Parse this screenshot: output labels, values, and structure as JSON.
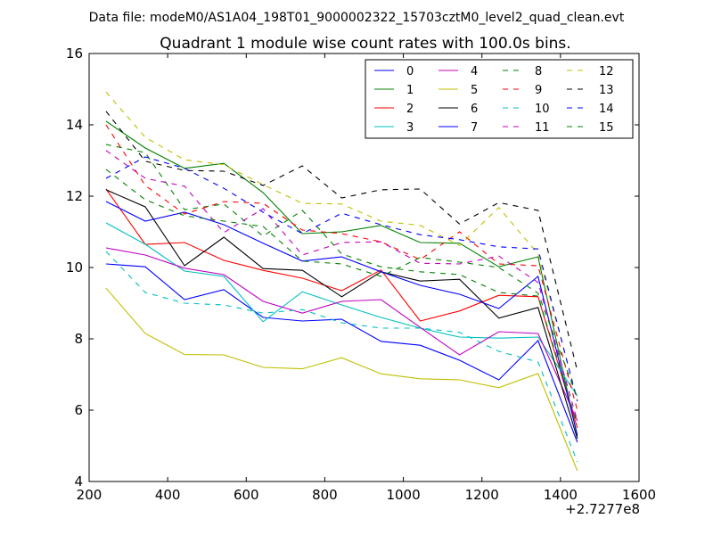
{
  "chart_data": {
    "type": "line",
    "suptitle": "Data file: modeM0/AS1A04_198T01_9000002322_15703cztM0_level2_quad_clean.evt",
    "title": "Quadrant 1 module wise count rates with 100.0s bins.",
    "xlabel": "",
    "ylabel": "",
    "x_offset_label": "+2.7277e8",
    "xlim": [
      200,
      1600
    ],
    "ylim": [
      4,
      16
    ],
    "xticks": [
      200,
      400,
      600,
      800,
      1000,
      1200,
      1400,
      1600
    ],
    "yticks": [
      4,
      6,
      8,
      10,
      12,
      14,
      16
    ],
    "grid": false,
    "legend_position": "top-right",
    "x": [
      243,
      343,
      443,
      543,
      643,
      743,
      843,
      943,
      1043,
      1143,
      1243,
      1343,
      1443
    ],
    "series": [
      {
        "name": "0",
        "color": "#0000ff",
        "dash": false,
        "values": [
          10.1,
          10.02,
          9.1,
          9.38,
          8.6,
          8.5,
          8.55,
          7.93,
          7.82,
          7.4,
          6.85,
          7.95,
          5.1
        ]
      },
      {
        "name": "1",
        "color": "#008000",
        "dash": false,
        "values": [
          14.1,
          13.35,
          12.78,
          12.92,
          12.1,
          10.95,
          11.0,
          11.18,
          10.7,
          10.68,
          10.02,
          10.3,
          5.25
        ]
      },
      {
        "name": "2",
        "color": "#ff0000",
        "dash": false,
        "values": [
          12.2,
          10.65,
          10.7,
          10.2,
          9.92,
          9.7,
          9.35,
          9.93,
          8.5,
          8.78,
          9.22,
          9.18,
          5.5
        ]
      },
      {
        "name": "3",
        "color": "#00bfbf",
        "dash": false,
        "values": [
          11.25,
          10.65,
          9.9,
          9.75,
          8.48,
          9.32,
          8.95,
          8.6,
          8.3,
          8.05,
          8.02,
          8.05,
          6.4
        ]
      },
      {
        "name": "4",
        "color": "#bf00bf",
        "dash": false,
        "values": [
          10.55,
          10.35,
          9.98,
          9.8,
          9.05,
          8.72,
          9.05,
          9.1,
          8.32,
          7.55,
          8.2,
          8.15,
          5.7
        ]
      },
      {
        "name": "5",
        "color": "#bfbf00",
        "dash": false,
        "values": [
          9.42,
          8.15,
          7.56,
          7.55,
          7.2,
          7.16,
          7.47,
          7.02,
          6.88,
          6.85,
          6.63,
          7.03,
          4.3
        ]
      },
      {
        "name": "6",
        "color": "#000000",
        "dash": false,
        "values": [
          12.18,
          11.7,
          10.05,
          10.85,
          9.97,
          9.92,
          9.18,
          9.88,
          9.62,
          9.67,
          8.58,
          8.88,
          5.2
        ]
      },
      {
        "name": "7",
        "color": "#0000ff",
        "dash": false,
        "values": [
          11.85,
          11.3,
          11.55,
          11.2,
          10.68,
          10.18,
          10.3,
          9.88,
          9.5,
          9.25,
          8.85,
          9.75,
          5.3
        ]
      },
      {
        "name": "8",
        "color": "#008000",
        "dash": true,
        "values": [
          13.45,
          13.22,
          11.62,
          11.78,
          10.88,
          11.6,
          10.38,
          10.02,
          9.88,
          9.8,
          9.3,
          9.2,
          5.6
        ]
      },
      {
        "name": "9",
        "color": "#ff0000",
        "dash": true,
        "values": [
          14.0,
          12.3,
          11.5,
          11.85,
          11.8,
          11.05,
          10.95,
          10.72,
          10.22,
          11.0,
          10.1,
          10.05,
          6.0
        ]
      },
      {
        "name": "10",
        "color": "#00bfbf",
        "dash": true,
        "values": [
          10.45,
          9.3,
          9.0,
          8.95,
          8.72,
          8.82,
          8.45,
          8.3,
          8.3,
          8.18,
          7.65,
          7.35,
          4.55
        ]
      },
      {
        "name": "11",
        "color": "#bf00bf",
        "dash": true,
        "values": [
          13.28,
          12.5,
          12.28,
          10.98,
          11.65,
          10.35,
          10.7,
          10.72,
          10.12,
          10.1,
          10.32,
          9.58,
          5.7
        ]
      },
      {
        "name": "12",
        "color": "#bfbf00",
        "dash": true,
        "values": [
          14.92,
          13.65,
          13.02,
          12.88,
          12.32,
          11.8,
          11.78,
          11.3,
          11.18,
          10.62,
          11.68,
          10.38,
          6.3
        ]
      },
      {
        "name": "13",
        "color": "#000000",
        "dash": true,
        "values": [
          14.38,
          12.98,
          12.72,
          12.7,
          12.3,
          12.85,
          11.95,
          12.18,
          12.2,
          11.22,
          11.82,
          11.6,
          7.1
        ]
      },
      {
        "name": "14",
        "color": "#0000ff",
        "dash": true,
        "values": [
          12.5,
          13.1,
          12.78,
          12.22,
          11.55,
          10.95,
          11.52,
          11.2,
          10.92,
          10.78,
          10.58,
          10.52,
          6.25
        ]
      },
      {
        "name": "15",
        "color": "#008000",
        "dash": true,
        "values": [
          12.75,
          11.9,
          11.45,
          11.3,
          11.15,
          10.18,
          10.1,
          9.75,
          10.28,
          10.15,
          10.0,
          9.28,
          6.35
        ]
      }
    ]
  }
}
